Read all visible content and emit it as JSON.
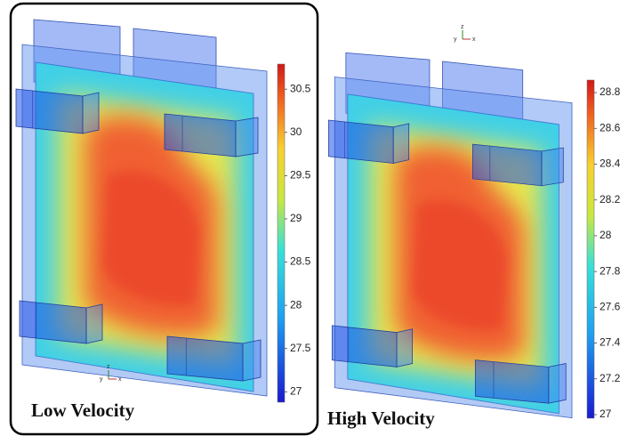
{
  "panels": [
    {
      "label": "Low Velocity",
      "colorbar": {
        "lim": [
          26.88,
          30.79
        ],
        "ticks": [
          27,
          27.5,
          28,
          28.5,
          29,
          29.5,
          30,
          30.5
        ]
      },
      "triad": [
        "z",
        "y",
        "x"
      ]
    },
    {
      "label": "High Velocity",
      "colorbar": {
        "lim": [
          26.98,
          28.87
        ],
        "ticks": [
          27,
          27.2,
          27.4,
          27.6,
          27.8,
          28,
          28.2,
          28.4,
          28.6,
          28.8
        ]
      },
      "triad": [
        "z",
        "y",
        "x"
      ]
    }
  ]
}
